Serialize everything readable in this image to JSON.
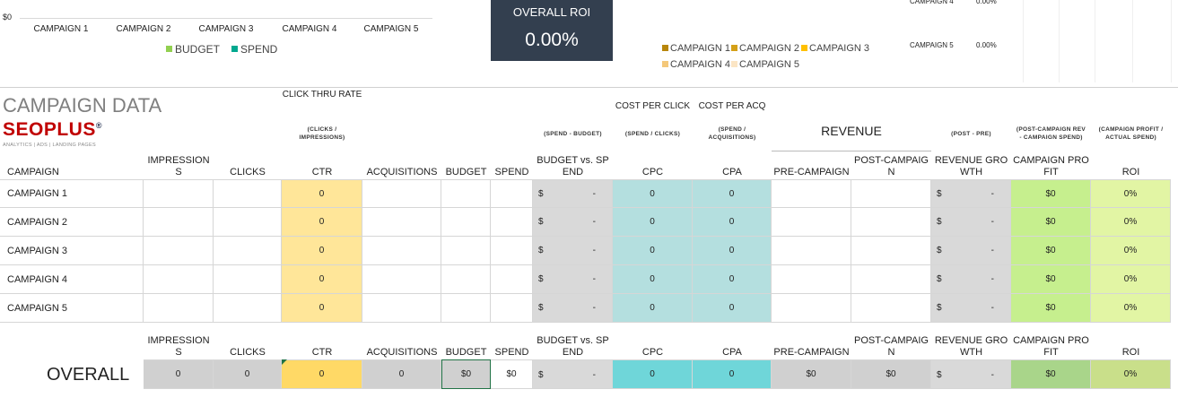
{
  "chart": {
    "y_label": "$0",
    "categories": [
      "CAMPAIGN 1",
      "CAMPAIGN 2",
      "CAMPAIGN 3",
      "CAMPAIGN 4",
      "CAMPAIGN 5"
    ],
    "legend": [
      "BUDGET",
      "SPEND"
    ]
  },
  "roi_card": {
    "title": "OVERALL ROI",
    "value": "0.00%"
  },
  "roi_legend": [
    "CAMPAIGN 1",
    "CAMPAIGN 2",
    "CAMPAIGN 3",
    "CAMPAIGN 4",
    "CAMPAIGN 5"
  ],
  "roi_list": [
    {
      "name": "CAMPAIGN 4",
      "value": "0.00%"
    },
    {
      "name": "CAMPAIGN 5",
      "value": "0.00%"
    }
  ],
  "section_title": "CAMPAIGN DATA",
  "logo": {
    "name": "SEOPLUS",
    "mark": "®",
    "tagline": "ANALYTICS | ADS | LANDING PAGES"
  },
  "revenue_group": "REVENUE",
  "table": {
    "columns": [
      {
        "header": "CAMPAIGN"
      },
      {
        "header": "IMPRESSIONS"
      },
      {
        "header": "CLICKS"
      },
      {
        "header": "CTR",
        "top": "CLICK THRU RATE",
        "formula": "(CLICKS / IMPRESSIONS)"
      },
      {
        "header": "ACQUISITIONS"
      },
      {
        "header": "BUDGET"
      },
      {
        "header": "SPEND"
      },
      {
        "header": "BUDGET vs. SPEND",
        "formula": "(SPEND - BUDGET)"
      },
      {
        "header": "CPC",
        "top": "COST PER CLICK",
        "formula": "(SPEND / CLICKS)"
      },
      {
        "header": "CPA",
        "top": "COST PER ACQ",
        "formula": "(SPEND / ACQUISITIONS)"
      },
      {
        "header": "PRE-CAMPAIGN"
      },
      {
        "header": "POST-CAMPAIGN"
      },
      {
        "header": "REVENUE GROWTH",
        "formula": "(POST - PRE)"
      },
      {
        "header": "CAMPAIGN PROFIT",
        "formula": "(POST-CAMPAIGN REV - CAMPAIGN SPEND)"
      },
      {
        "header": "ROI",
        "formula": "(CAMPAIGN PROFIT / ACTUAL SPEND)"
      }
    ],
    "rows": [
      [
        "CAMPAIGN 1",
        null,
        null,
        "0",
        null,
        null,
        null,
        [
          "$",
          "-"
        ],
        "0",
        "0",
        null,
        null,
        [
          "$",
          "-"
        ],
        "$0",
        "0%"
      ],
      [
        "CAMPAIGN 2",
        null,
        null,
        "0",
        null,
        null,
        null,
        [
          "$",
          "-"
        ],
        "0",
        "0",
        null,
        null,
        [
          "$",
          "-"
        ],
        "$0",
        "0%"
      ],
      [
        "CAMPAIGN 3",
        null,
        null,
        "0",
        null,
        null,
        null,
        [
          "$",
          "-"
        ],
        "0",
        "0",
        null,
        null,
        [
          "$",
          "-"
        ],
        "$0",
        "0%"
      ],
      [
        "CAMPAIGN 4",
        null,
        null,
        "0",
        null,
        null,
        null,
        [
          "$",
          "-"
        ],
        "0",
        "0",
        null,
        null,
        [
          "$",
          "-"
        ],
        "$0",
        "0%"
      ],
      [
        "CAMPAIGN 5",
        null,
        null,
        "0",
        null,
        null,
        null,
        [
          "$",
          "-"
        ],
        "0",
        "0",
        null,
        null,
        [
          "$",
          "-"
        ],
        "$0",
        "0%"
      ]
    ],
    "overall": {
      "label": "OVERALL",
      "cells": [
        null,
        "0",
        "0",
        "0",
        "0",
        "$0",
        "$0",
        [
          "$",
          "-"
        ],
        "0",
        "0",
        "$0",
        "$0",
        [
          "$",
          "-"
        ],
        "$0",
        "0%"
      ]
    }
  }
}
